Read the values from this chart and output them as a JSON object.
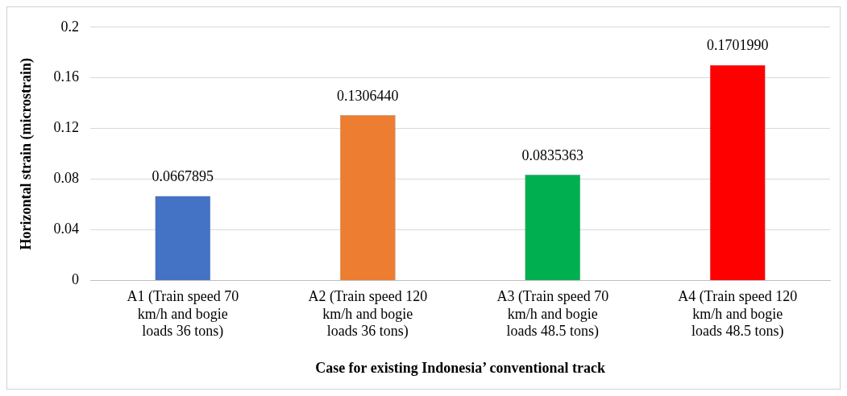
{
  "chart_data": {
    "type": "bar",
    "xlabel": "Case for existing Indonesia’ conventional track",
    "ylabel": "Horizontal strain (microstrain)",
    "categories": [
      "A1 (Train speed 70 km/h and bogie loads 36 tons)",
      "A2 (Train speed 120 km/h and bogie loads 36 tons)",
      "A3 (Train speed 70 km/h and bogie loads 48.5 tons)",
      "A4 (Train speed 120 km/h and bogie loads 48.5 tons)"
    ],
    "values": [
      0.0667895,
      0.130644,
      0.0835363,
      0.170199
    ],
    "value_labels": [
      "0.0667895",
      "0.1306440",
      "0.0835363",
      "0.1701990"
    ],
    "colors": [
      "#4472c4",
      "#ed7d31",
      "#00b050",
      "#ff0000"
    ],
    "ylim": [
      0,
      0.2
    ],
    "yticks": [
      0,
      0.04,
      0.08,
      0.12,
      0.16,
      0.2
    ],
    "grid": "y",
    "legend": false
  }
}
